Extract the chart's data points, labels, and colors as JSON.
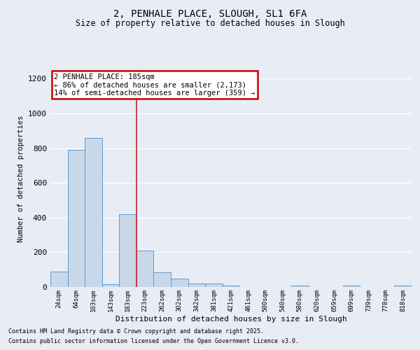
{
  "title1": "2, PENHALE PLACE, SLOUGH, SL1 6FA",
  "title2": "Size of property relative to detached houses in Slough",
  "xlabel": "Distribution of detached houses by size in Slough",
  "ylabel": "Number of detached properties",
  "categories": [
    "24sqm",
    "64sqm",
    "103sqm",
    "143sqm",
    "183sqm",
    "223sqm",
    "262sqm",
    "302sqm",
    "342sqm",
    "381sqm",
    "421sqm",
    "461sqm",
    "500sqm",
    "540sqm",
    "580sqm",
    "620sqm",
    "659sqm",
    "699sqm",
    "739sqm",
    "778sqm",
    "818sqm"
  ],
  "values": [
    90,
    790,
    860,
    15,
    420,
    210,
    85,
    50,
    20,
    20,
    10,
    0,
    0,
    0,
    10,
    0,
    0,
    10,
    0,
    0,
    10
  ],
  "bar_color": "#c8d8e8",
  "bar_edge_color": "#5b9bd5",
  "vline_color": "#cc2222",
  "vline_index": 4,
  "annotation_text": "2 PENHALE PLACE: 185sqm\n← 86% of detached houses are smaller (2,173)\n14% of semi-detached houses are larger (359) →",
  "annotation_box_color": "#ffffff",
  "annotation_box_edge": "#cc0000",
  "ylim": [
    0,
    1250
  ],
  "yticks": [
    0,
    200,
    400,
    600,
    800,
    1000,
    1200
  ],
  "background_color": "#e8edf5",
  "grid_color": "#ffffff",
  "footnote1": "Contains HM Land Registry data © Crown copyright and database right 2025.",
  "footnote2": "Contains public sector information licensed under the Open Government Licence v3.0."
}
